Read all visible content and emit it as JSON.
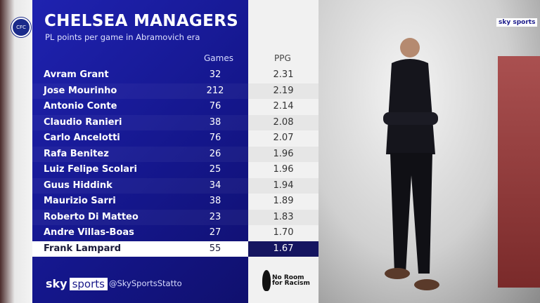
{
  "title": "CHELSEA MANAGERS",
  "subtitle": "PL points per game in Abramovich era",
  "headers": {
    "games": "Games",
    "ppg": "PPG"
  },
  "rows": [
    {
      "name": "Avram Grant",
      "games": "32",
      "ppg": "2.31"
    },
    {
      "name": "Jose Mourinho",
      "games": "212",
      "ppg": "2.19"
    },
    {
      "name": "Antonio Conte",
      "games": "76",
      "ppg": "2.14"
    },
    {
      "name": "Claudio Ranieri",
      "games": "38",
      "ppg": "2.08"
    },
    {
      "name": "Carlo Ancelotti",
      "games": "76",
      "ppg": "2.07"
    },
    {
      "name": "Rafa Benitez",
      "games": "26",
      "ppg": "1.96"
    },
    {
      "name": "Luiz Felipe Scolari",
      "games": "25",
      "ppg": "1.96"
    },
    {
      "name": "Guus Hiddink",
      "games": "34",
      "ppg": "1.94"
    },
    {
      "name": "Maurizio Sarri",
      "games": "38",
      "ppg": "1.89"
    },
    {
      "name": "Roberto Di Matteo",
      "games": "23",
      "ppg": "1.83"
    },
    {
      "name": "Andre Villas-Boas",
      "games": "27",
      "ppg": "1.70"
    },
    {
      "name": "Frank Lampard",
      "games": "55",
      "ppg": "1.67",
      "highlight": true
    }
  ],
  "footer": {
    "brand_sky": "sky",
    "brand_sports": "sports",
    "handle": "@SkySportsStatto",
    "campaign": "No Room for Racism"
  },
  "corner_logo": "sky sports",
  "colors": {
    "panel": "#1a1ca0",
    "highlight_ppg": "#151560"
  }
}
